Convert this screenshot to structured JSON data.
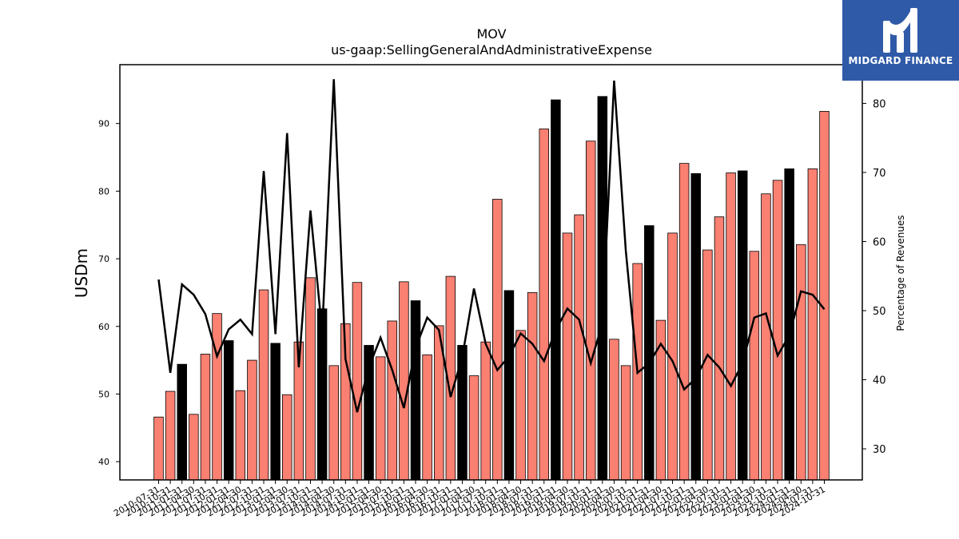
{
  "chart_data": {
    "type": "bar",
    "title": "MOV",
    "subtitle": "us-gaap:SellingGeneralAndAdministrativeExpense",
    "ylabel": "USDm",
    "ylabel_right": "Percentage of Revenues",
    "ylim": [
      37.3,
      98.7
    ],
    "ylim_right": [
      25.5,
      85.6
    ],
    "yticks": [
      40,
      50,
      60,
      70,
      80,
      90
    ],
    "yticks_right": [
      30,
      40,
      50,
      60,
      70,
      80
    ],
    "colors": {
      "quarter": "#fa8072",
      "annual": "#000000",
      "line": "#000000"
    },
    "categories": [
      "2010-07-31",
      "2010-10-31",
      "2011-01-31",
      "2011-04-30",
      "2011-07-31",
      "2011-10-31",
      "2012-01-31",
      "2012-04-30",
      "2012-07-31",
      "2012-10-31",
      "2013-01-31",
      "2013-04-30",
      "2013-07-31",
      "2013-10-31",
      "2014-01-31",
      "2014-04-30",
      "2014-07-31",
      "2014-10-31",
      "2015-01-31",
      "2015-04-30",
      "2015-07-31",
      "2015-10-31",
      "2016-01-31",
      "2016-04-30",
      "2016-07-31",
      "2016-10-31",
      "2017-01-31",
      "2017-04-30",
      "2017-07-31",
      "2017-10-31",
      "2018-01-31",
      "2018-04-30",
      "2018-07-31",
      "2018-10-31",
      "2019-01-31",
      "2019-04-30",
      "2019-07-31",
      "2019-10-31",
      "2020-01-31",
      "2020-04-30",
      "2020-07-31",
      "2020-10-31",
      "2021-01-31",
      "2021-04-30",
      "2021-07-31",
      "2021-10-31",
      "2022-01-31",
      "2022-04-30",
      "2022-07-31",
      "2022-10-31",
      "2023-01-31",
      "2023-04-30",
      "2023-07-31",
      "2023-10-31",
      "2024-01-31",
      "2024-04-30",
      "2024-07-31",
      "2024-10-31"
    ],
    "xtick_labels": [
      "2010-07-31",
      "2010-10-31",
      "2011-01-31",
      "2011-04-30",
      "2011-07-31",
      "2011-10-31",
      "2012-01-31",
      "2012-04-30",
      "2012-07-31",
      "2012-10-31",
      "2013-01-31",
      "2013-04-30",
      "2013-07-31",
      "2013-10-31",
      "2014-01-31",
      "2014-04-30",
      "2014-07-31",
      "2014-10-31",
      "2015-01-31",
      "2015-04-30",
      "2015-07-31",
      "2015-10-31",
      "2016-01-31",
      "2016-04-30",
      "2016-07-31",
      "2016-10-31",
      "2017-01-31",
      "2017-04-30",
      "2017-07-31",
      "2017-10-31",
      "2018-01-31",
      "2018-04-30",
      "2018-07-31",
      "2018-10-31",
      "2019-01-31",
      "2019-04-30",
      "2019-07-31",
      "2019-10-31",
      "2020-01-31",
      "2020-04-30",
      "2020-07-31",
      "2020-10-31",
      "2021-01-31",
      "2021-04-30",
      "2021-07-31",
      "2021-10-31",
      "2022-01-31",
      "2022-04-30",
      "2022-07-31",
      "2022-10-31",
      "2023-01-31",
      "2023-04-30",
      "2023-07-31",
      "2023-10-31",
      "2024-01-31",
      "2024-04-30",
      "2024-07-31",
      "2024-10-31"
    ],
    "series": [
      {
        "type": "bar",
        "axis": "left",
        "values": [
          46.6,
          50.4,
          54.4,
          47.0,
          55.9,
          61.9,
          57.9,
          50.5,
          55.0,
          65.4,
          57.5,
          49.9,
          57.7,
          67.2,
          62.6,
          54.2,
          60.4,
          66.5,
          57.2,
          55.5,
          60.8,
          66.6,
          63.8,
          55.8,
          60.1,
          67.4,
          57.2,
          52.7,
          57.7,
          78.8,
          65.3,
          59.4,
          65.0,
          89.2,
          93.5,
          73.8,
          76.5,
          87.4,
          94.0,
          58.1,
          54.2,
          69.3,
          74.9,
          60.9,
          73.8,
          84.1,
          82.6,
          71.3,
          76.2,
          82.7,
          83.0,
          71.1,
          79.6,
          81.6,
          83.3,
          72.1,
          83.3,
          91.8
        ],
        "annual": [
          false,
          false,
          true,
          false,
          false,
          false,
          true,
          false,
          false,
          false,
          true,
          false,
          false,
          false,
          true,
          false,
          false,
          false,
          true,
          false,
          false,
          false,
          true,
          false,
          false,
          false,
          true,
          false,
          false,
          false,
          true,
          false,
          false,
          false,
          true,
          false,
          false,
          false,
          true,
          false,
          false,
          false,
          true,
          false,
          false,
          false,
          true,
          false,
          false,
          false,
          true,
          false,
          false,
          false,
          true,
          false,
          false,
          false
        ]
      },
      {
        "type": "line",
        "axis": "right",
        "values": [
          54.5,
          41.0,
          53.8,
          52.3,
          49.5,
          43.4,
          47.3,
          48.7,
          46.6,
          70.2,
          46.6,
          75.7,
          41.8,
          64.5,
          46.9,
          83.5,
          43.0,
          35.3,
          41.8,
          46.1,
          41.4,
          35.9,
          44.6,
          49.0,
          47.2,
          37.5,
          43.3,
          53.2,
          45.2,
          41.4,
          43.4,
          46.7,
          45.2,
          42.7,
          47.2,
          50.3,
          48.7,
          42.4,
          48.2,
          83.3,
          58.7,
          41.0,
          42.4,
          45.2,
          42.7,
          38.6,
          40.2,
          43.6,
          41.8,
          39.1,
          42.4,
          49.0,
          49.6,
          43.5,
          46.4,
          52.8,
          52.3,
          50.2
        ]
      }
    ]
  },
  "logo": {
    "text": "MIDGARD FINANCE"
  }
}
